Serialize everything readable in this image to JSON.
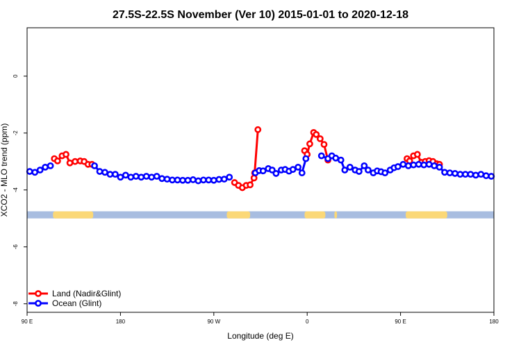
{
  "chart_data": {
    "type": "line",
    "title": "27.5S-22.5S November (Ver 10)   2015-01-01 to 2020-12-18",
    "xlabel": "Longitude (deg E)",
    "ylabel": "XCO2 - MLO trend (ppm)",
    "xlim": [
      90,
      450
    ],
    "ylim": [
      -8.3,
      1.7
    ],
    "x_ticks": [
      {
        "value": 90,
        "label": "90 E"
      },
      {
        "value": 162,
        "label": "180"
      },
      {
        "value": 234,
        "label": "90 W"
      },
      {
        "value": 306,
        "label": "0"
      },
      {
        "value": 378,
        "label": "90 E"
      },
      {
        "value": 450,
        "label": "180"
      }
    ],
    "y_ticks": [
      {
        "value": 0,
        "label": "0"
      },
      {
        "value": -2,
        "label": "-2"
      },
      {
        "value": -4,
        "label": "-4"
      },
      {
        "value": -6,
        "label": "-6"
      },
      {
        "value": -8,
        "label": "-8"
      }
    ],
    "legend_position": "bottom-left",
    "land_mask": {
      "y_top": -4.75,
      "y_bottom": -5.0,
      "ocean_color": "#a8bde0",
      "land_color": "#fbd877",
      "land_segments": [
        [
          110,
          141
        ],
        [
          244,
          262
        ],
        [
          304,
          320
        ],
        [
          327,
          329
        ],
        [
          382,
          414
        ]
      ]
    },
    "series": [
      {
        "name": "Land (Nadir&Glint)",
        "color": "#ff0000",
        "segments": [
          {
            "x": [
              111,
              113.5,
              117,
              120,
              123,
              127,
              131,
              134,
              137,
              140
            ],
            "y": [
              -2.9,
              -2.98,
              -2.8,
              -2.75,
              -3.05,
              -3.0,
              -2.98,
              -3.0,
              -3.1,
              -3.1
            ]
          },
          {
            "x": [
              250,
              253,
              256,
              259,
              262,
              265,
              265.5,
              268
            ],
            "y": [
              -3.74,
              -3.84,
              -3.92,
              -3.84,
              -3.82,
              -3.58,
              -3.4,
              -1.88
            ]
          },
          {
            "x": [
              304,
              306,
              308,
              311,
              313,
              316,
              319,
              322
            ],
            "y": [
              -2.62,
              -2.75,
              -2.38,
              -1.98,
              -2.05,
              -2.2,
              -2.4,
              -2.95
            ]
          },
          {
            "x": [
              383,
              385,
              388,
              391,
              394,
              397,
              400,
              403,
              406,
              408
            ],
            "y": [
              -2.9,
              -2.98,
              -2.8,
              -2.75,
              -3.03,
              -3.0,
              -2.97,
              -3.0,
              -3.08,
              -3.1
            ]
          }
        ]
      },
      {
        "name": "Ocean (Glint)",
        "color": "#0000ff",
        "segments": [
          {
            "x": [
              92,
              96,
              100,
              104,
              108
            ],
            "y": [
              -3.35,
              -3.38,
              -3.3,
              -3.2,
              -3.15
            ]
          },
          {
            "x": [
              142,
              146,
              150,
              154,
              158,
              162,
              166,
              170,
              174,
              178,
              182,
              186,
              190,
              194,
              198,
              202,
              206,
              210,
              214,
              218,
              222,
              226,
              230,
              234,
              238,
              242,
              246
            ],
            "y": [
              -3.15,
              -3.35,
              -3.38,
              -3.45,
              -3.45,
              -3.55,
              -3.48,
              -3.55,
              -3.52,
              -3.55,
              -3.52,
              -3.55,
              -3.52,
              -3.6,
              -3.62,
              -3.65,
              -3.65,
              -3.66,
              -3.66,
              -3.64,
              -3.68,
              -3.65,
              -3.65,
              -3.66,
              -3.63,
              -3.62,
              -3.55
            ]
          },
          {
            "x": [
              266,
              269,
              272,
              276,
              279,
              282,
              286,
              289,
              292,
              295,
              299,
              302,
              305
            ],
            "y": [
              -3.4,
              -3.32,
              -3.33,
              -3.25,
              -3.3,
              -3.42,
              -3.3,
              -3.28,
              -3.34,
              -3.28,
              -3.2,
              -3.4,
              -2.9
            ]
          },
          {
            "x": [
              317,
              322,
              325,
              328,
              332,
              335,
              339,
              343,
              346,
              350,
              353,
              357,
              360,
              363,
              366,
              370,
              373,
              376,
              380,
              384,
              388,
              392,
              396,
              400,
              404,
              408,
              412,
              416,
              420,
              424,
              428,
              432,
              436,
              440,
              444,
              448
            ],
            "y": [
              -2.8,
              -2.9,
              -2.8,
              -2.88,
              -2.95,
              -3.3,
              -3.2,
              -3.3,
              -3.35,
              -3.15,
              -3.3,
              -3.4,
              -3.33,
              -3.36,
              -3.4,
              -3.3,
              -3.22,
              -3.18,
              -3.1,
              -3.15,
              -3.12,
              -3.1,
              -3.12,
              -3.1,
              -3.15,
              -3.2,
              -3.38,
              -3.4,
              -3.42,
              -3.45,
              -3.45,
              -3.45,
              -3.48,
              -3.45,
              -3.5,
              -3.52
            ]
          }
        ]
      }
    ]
  }
}
